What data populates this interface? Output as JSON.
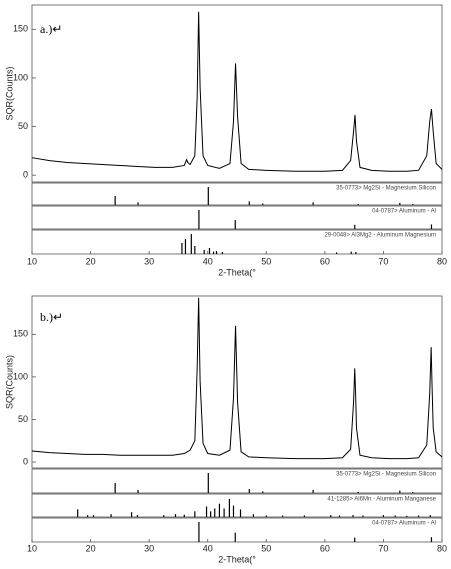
{
  "chart_data": [
    {
      "type": "line",
      "label": "a.)↵",
      "ylabel": "SQR(Counts)",
      "xlabel": "2-Theta(°",
      "xlim": [
        10,
        80
      ],
      "xticks": [
        10,
        20,
        30,
        40,
        50,
        60,
        70,
        80
      ],
      "ylim": [
        -7,
        175
      ],
      "yticks": [
        0,
        50,
        100,
        150
      ],
      "color": "#000000",
      "x": [
        10,
        13,
        16,
        19,
        22,
        25,
        28,
        31,
        34,
        36,
        36.4,
        36.6,
        37,
        37.8,
        38.2,
        38.45,
        38.7,
        39.2,
        40,
        42,
        43.8,
        44.4,
        44.75,
        45.1,
        45.7,
        47,
        50,
        55,
        60,
        63,
        64.4,
        64.9,
        65.15,
        65.4,
        66,
        68,
        71,
        74,
        76,
        77.4,
        77.9,
        78.2,
        78.5,
        79,
        80
      ],
      "values": [
        18,
        15,
        13,
        12,
        11,
        10,
        9,
        8,
        8,
        10,
        16,
        13,
        11,
        20,
        80,
        168,
        90,
        20,
        10,
        7,
        12,
        55,
        115,
        60,
        12,
        6,
        5,
        4,
        4,
        5,
        15,
        45,
        62,
        35,
        8,
        5,
        4,
        4,
        5,
        20,
        55,
        68,
        45,
        12,
        6
      ],
      "ref_ylim": [
        0,
        100
      ],
      "references": [
        {
          "name": "35-0773> Mg2Si - Magnesium Silicon",
          "positions": [
            24.2,
            28.1,
            40.1,
            47.1,
            49.4,
            58.0,
            65.7,
            72.8,
            75.0
          ],
          "intensities": [
            50,
            15,
            100,
            20,
            8,
            15,
            5,
            12,
            5
          ]
        },
        {
          "name": "04-0787> Aluminum - Al",
          "positions": [
            38.5,
            44.7,
            65.1,
            78.2
          ],
          "intensities": [
            100,
            47,
            22,
            24
          ]
        },
        {
          "name": "29-0048> Al3Mg2 - Aluminum Magnesium",
          "positions": [
            35.6,
            36.2,
            37.2,
            37.8,
            39.4,
            40.3,
            41.0,
            41.5,
            42.5,
            62.0,
            64.5,
            65.3
          ],
          "intensities": [
            55,
            75,
            100,
            40,
            20,
            30,
            12,
            15,
            10,
            8,
            12,
            10
          ]
        }
      ]
    },
    {
      "type": "line",
      "label": "b.)↵",
      "ylabel": "SQR(Counts)",
      "xlabel": "2-Theta(°",
      "xlim": [
        10,
        80
      ],
      "xticks": [
        10,
        20,
        30,
        40,
        50,
        60,
        70,
        80
      ],
      "ylim": [
        -7,
        195
      ],
      "yticks": [
        0,
        50,
        100,
        150
      ],
      "color": "#000000",
      "x": [
        10,
        13,
        16,
        19,
        22,
        25,
        28,
        31,
        34,
        36,
        37,
        37.8,
        38.2,
        38.45,
        38.7,
        39.2,
        40,
        42,
        43.8,
        44.4,
        44.75,
        45.1,
        45.7,
        47,
        50,
        55,
        60,
        63,
        64.4,
        64.9,
        65.1,
        65.25,
        65.4,
        66,
        68,
        71,
        74,
        76,
        77.4,
        77.9,
        78.15,
        78.3,
        78.5,
        79,
        80
      ],
      "values": [
        13,
        11,
        10,
        9,
        9,
        8,
        8,
        8,
        8,
        10,
        14,
        25,
        110,
        193,
        95,
        22,
        10,
        8,
        14,
        75,
        160,
        70,
        12,
        6,
        5,
        4,
        4,
        5,
        15,
        70,
        110,
        80,
        40,
        8,
        5,
        4,
        4,
        5,
        20,
        80,
        135,
        90,
        40,
        12,
        6
      ],
      "ref_ylim": [
        0,
        100
      ],
      "references": [
        {
          "name": "35-0773> Mg2Si - Magnesium Silicon",
          "positions": [
            24.2,
            28.1,
            40.1,
            47.1,
            49.4,
            58.0,
            65.7,
            72.8,
            75.0
          ],
          "intensities": [
            50,
            15,
            100,
            20,
            8,
            15,
            5,
            12,
            5
          ]
        },
        {
          "name": "41-1285> Al6Mn - Aluminum Manganese",
          "positions": [
            17.8,
            19.5,
            20.5,
            23.5,
            27.0,
            28.0,
            32.5,
            34.5,
            36.0,
            37.8,
            39.8,
            40.5,
            41.2,
            42.0,
            42.8,
            43.7,
            44.4,
            45.6,
            47.8,
            50.0,
            52.8,
            56.5,
            61.0,
            62.5,
            64.8,
            66.5,
            70.0,
            72.0,
            74.0,
            76.0,
            78.0
          ],
          "intensities": [
            40,
            10,
            10,
            15,
            25,
            10,
            10,
            15,
            12,
            30,
            55,
            30,
            45,
            70,
            45,
            95,
            60,
            40,
            15,
            8,
            8,
            8,
            10,
            8,
            10,
            8,
            10,
            8,
            6,
            8,
            10
          ]
        },
        {
          "name": "04-0787> Aluminum - Al",
          "positions": [
            38.5,
            44.7,
            65.1,
            78.2
          ],
          "intensities": [
            100,
            47,
            22,
            24
          ]
        }
      ]
    }
  ]
}
